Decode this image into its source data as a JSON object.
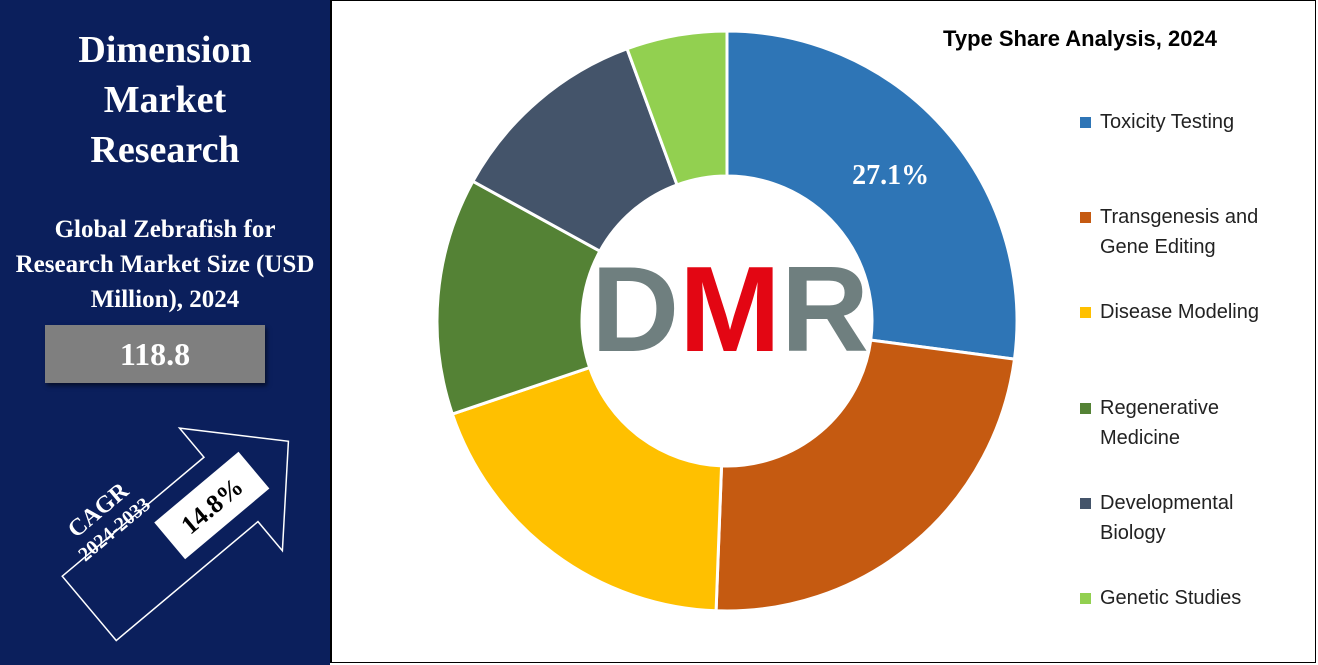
{
  "panel": {
    "brand": [
      "Dimension",
      "Market",
      "Research"
    ],
    "metric_title": "Global Zebrafish for Research Market Size (USD Million), 2024",
    "metric_value": "118.8",
    "cagr_label": "CAGR",
    "cagr_period": "2024-2033",
    "cagr_value": "14.8%"
  },
  "logo": [
    "D",
    "M",
    "R"
  ],
  "chart_data": {
    "type": "pie",
    "donut": true,
    "title": "Type Share Analysis, 2024",
    "categories": [
      "Toxicity Testing",
      "Transgenesis and Gene Editing",
      "Disease Modeling",
      "Regenerative Medicine",
      "Developmental Biology",
      "Genetic Studies"
    ],
    "values": [
      27.1,
      23.5,
      19.2,
      13.2,
      11.4,
      5.6
    ],
    "value_labels": [
      "27.1%",
      null,
      null,
      null,
      null,
      null
    ],
    "colors": [
      "#2e75b6",
      "#c55a11",
      "#ffc000",
      "#548235",
      "#44546a",
      "#92d050"
    ]
  }
}
